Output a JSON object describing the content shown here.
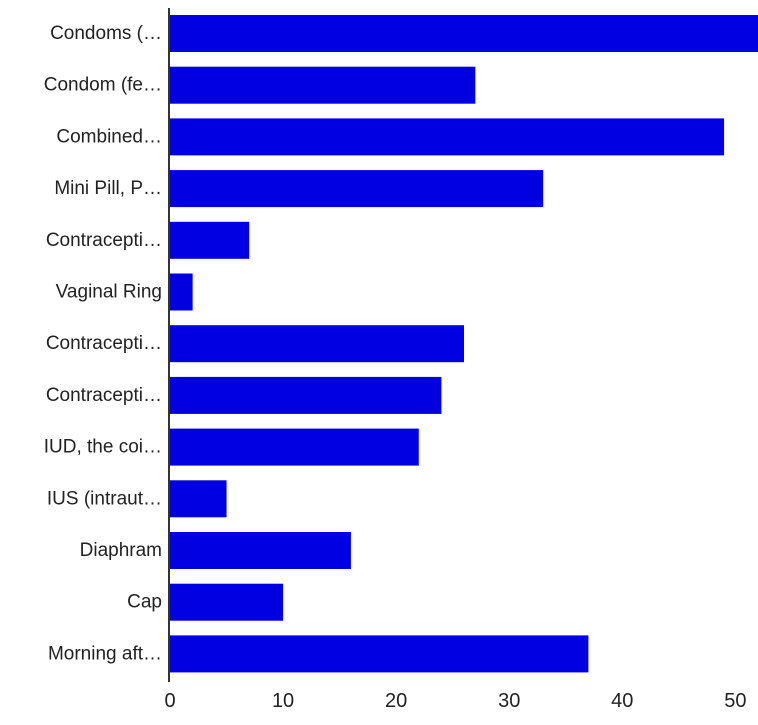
{
  "chart_data": {
    "type": "bar",
    "orientation": "horizontal",
    "title": "",
    "xlabel": "",
    "ylabel": "",
    "categories": [
      "Condoms (…",
      "Condom (fe…",
      "Combined…",
      "Mini Pill, P…",
      "Contracepti…",
      "Vaginal Ring",
      "Contracepti…",
      "Contracepti…",
      "IUD, the coi…",
      "IUS (intraut…",
      "Diaphram",
      "Cap",
      "Morning aft…"
    ],
    "values": [
      52,
      27,
      49,
      33,
      7,
      2,
      26,
      24,
      22,
      5,
      16,
      10,
      37
    ],
    "xlim": [
      0,
      52
    ],
    "xticks": [
      "0",
      "10",
      "20",
      "30",
      "40",
      "50"
    ],
    "xtick_values": [
      0,
      10,
      20,
      30,
      40,
      50
    ],
    "grid": false,
    "legend": "none",
    "bar_color": "#0000e1",
    "axis_color": "#333333",
    "label_color": "#222222"
  }
}
